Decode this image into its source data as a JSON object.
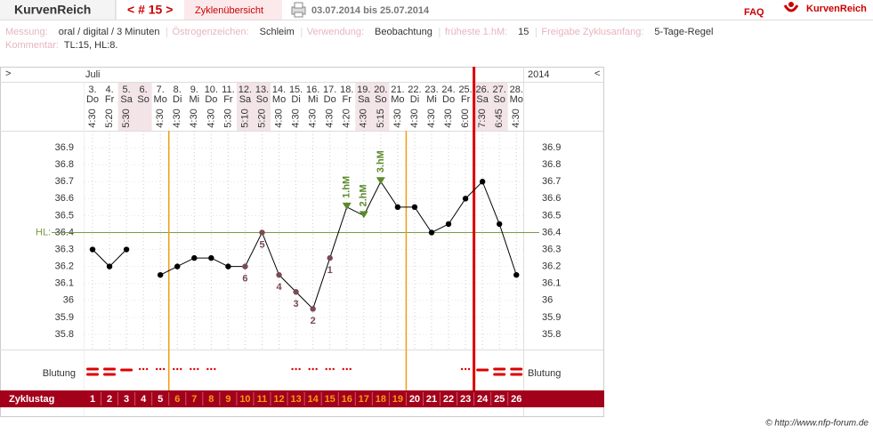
{
  "header": {
    "brand": "KurvenReich",
    "cycle": "< # 15 >",
    "overview": "Zyklenübersicht",
    "range": "03.07.2014 bis 25.07.2014",
    "faq": "FAQ",
    "logo": "KurvenReich"
  },
  "info": {
    "fields": [
      {
        "label": "Messung:",
        "value": "oral / digital / 3 Minuten"
      },
      {
        "label": "Östrogenzeichen:",
        "value": "Schleim"
      },
      {
        "label": "Verwendung:",
        "value": "Beobachtung"
      },
      {
        "label": "früheste 1.hM:",
        "value": 15
      },
      {
        "label": "Freigabe Zyklusanfang:",
        "value": "5-Tage-Regel"
      }
    ],
    "comment_label": "Kommentar:",
    "comment": "TL:15, HL:8."
  },
  "footer": "© http://www.nfp-forum.de",
  "chart_data": {
    "type": "line",
    "left_marker": ">",
    "right_marker": "<",
    "month": "Juli",
    "year": "2014",
    "dates": [
      "3.",
      "4.",
      "5.",
      "6.",
      "7.",
      "8.",
      "9.",
      "10.",
      "11.",
      "12.",
      "13.",
      "14.",
      "15.",
      "16.",
      "17.",
      "18.",
      "19.",
      "20.",
      "21.",
      "22.",
      "23.",
      "24.",
      "25.",
      "26.",
      "27.",
      "28."
    ],
    "weekdays": [
      "Do",
      "Fr",
      "Sa",
      "So",
      "Mo",
      "Di",
      "Mi",
      "Do",
      "Fr",
      "Sa",
      "So",
      "Mo",
      "Di",
      "Mi",
      "Do",
      "Fr",
      "Sa",
      "So",
      "Mo",
      "Di",
      "Mi",
      "Do",
      "Fr",
      "Sa",
      "So",
      "Mo"
    ],
    "times": [
      "4:30",
      "5:20",
      "5:30",
      null,
      "4:30",
      "4:30",
      "4:30",
      "4:30",
      "5:30",
      "5:10",
      "5:20",
      "4:30",
      "4:30",
      "4:30",
      "4:30",
      "4:20",
      "4:30",
      "5:15",
      "4:30",
      "4:30",
      "4:30",
      "4:30",
      "6:00",
      "7:30",
      "6:45",
      "4:30"
    ],
    "shaded": [
      false,
      false,
      true,
      true,
      false,
      false,
      false,
      false,
      false,
      true,
      true,
      false,
      false,
      false,
      false,
      false,
      true,
      true,
      false,
      false,
      false,
      false,
      false,
      true,
      true,
      false
    ],
    "values": [
      36.3,
      36.2,
      36.3,
      null,
      36.15,
      36.2,
      36.25,
      36.25,
      36.2,
      36.2,
      36.4,
      36.15,
      36.05,
      35.95,
      36.25,
      36.55,
      36.5,
      36.7,
      36.55,
      36.55,
      36.4,
      36.45,
      36.6,
      36.7,
      36.45,
      36.15
    ],
    "point_labels": [
      null,
      null,
      null,
      null,
      null,
      null,
      null,
      null,
      null,
      6,
      5,
      4,
      3,
      2,
      1,
      "1.hM",
      "2.hM",
      "3.hM",
      null,
      null,
      null,
      null,
      null,
      null,
      null,
      null
    ],
    "color": "#000000",
    "hm_color": "#5a8a2a",
    "count_color": "#7a4a55",
    "ylim": [
      35.7,
      37.0
    ],
    "yticks": [
      35.8,
      35.9,
      36,
      36.1,
      36.2,
      36.3,
      36.4,
      36.5,
      36.6,
      36.7,
      36.8,
      36.9
    ],
    "grid": true,
    "hl_label": "HL:",
    "hl_value": 36.4,
    "hl_color": "#7a9a4a",
    "markers": [
      {
        "after": 5,
        "color": "#f39c12"
      },
      {
        "after": 19,
        "color": "#f39c12"
      },
      {
        "after": 23,
        "color": "#dd0000"
      }
    ],
    "bleeding_label": "Blutung",
    "bleeding": [
      "heavy",
      "heavy",
      "medium",
      "light",
      "light",
      "light",
      "light",
      "light",
      null,
      null,
      null,
      null,
      "light",
      "light",
      "light",
      "light",
      null,
      null,
      null,
      null,
      null,
      null,
      "light",
      "medium",
      "heavy",
      "heavy"
    ],
    "cycle_day_label": "Zyklustag",
    "cycle_days": [
      1,
      2,
      3,
      4,
      5,
      6,
      7,
      8,
      9,
      10,
      11,
      12,
      13,
      14,
      15,
      16,
      17,
      18,
      19,
      20,
      21,
      22,
      23,
      24,
      25,
      26
    ]
  }
}
